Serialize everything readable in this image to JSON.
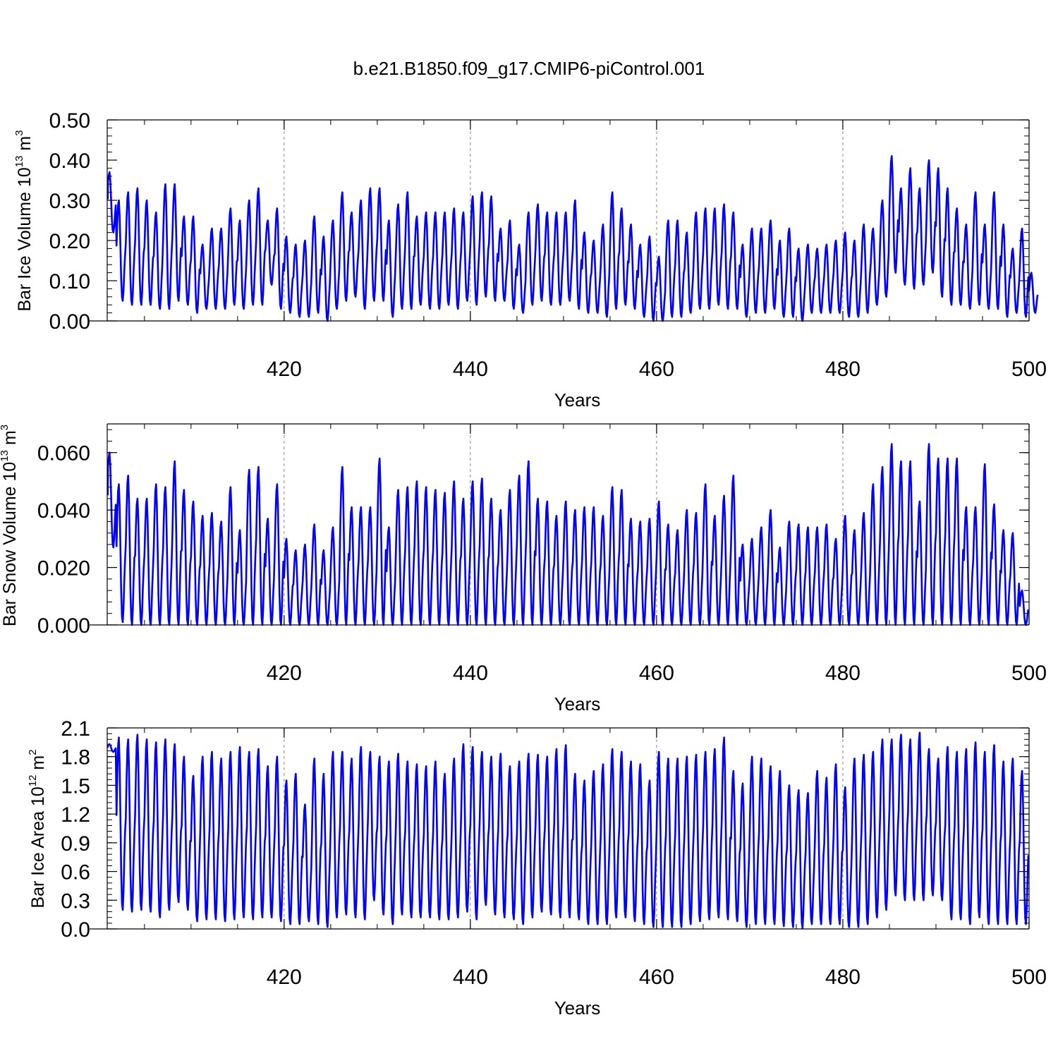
{
  "figure_title": "b.e21.B1850.f09_g17.CMIP6-piControl.001",
  "panels": [
    {
      "ylabel_main": "Bar Ice Volume 10",
      "ylabel_exp": "13",
      "ylabel_unit": " m",
      "ylabel_unit_exp": "3"
    },
    {
      "ylabel_main": "Bar Snow Volume 10",
      "ylabel_exp": "13",
      "ylabel_unit": " m",
      "ylabel_unit_exp": "3"
    },
    {
      "ylabel_main": "Bar Ice Area 10",
      "ylabel_exp": "12",
      "ylabel_unit": " m",
      "ylabel_unit_exp": "2"
    }
  ],
  "chart_data": [
    {
      "type": "line",
      "title": "b.e21.B1850.f09_g17.CMIP6-piControl.001",
      "xlabel": "Years",
      "ylabel": "Bar Ice Volume 10^13 m^3",
      "xlim": [
        401,
        500
      ],
      "ylim": [
        0.0,
        0.5
      ],
      "xticks": [
        420,
        440,
        460,
        480,
        500
      ],
      "xtick_labels": [
        "420",
        "440",
        "460",
        "480",
        "500"
      ],
      "yticks": [
        0.0,
        0.1,
        0.2,
        0.3,
        0.4,
        0.5
      ],
      "ytick_labels": [
        "0.00",
        "0.10",
        "0.20",
        "0.30",
        "0.40",
        "0.50"
      ],
      "grid": "dashed vertical lines at x ticks",
      "line_color": "#0000ff",
      "series": [
        {
          "x_start": 401,
          "annual_max": [
            0.37,
            0.3,
            0.32,
            0.33,
            0.3,
            0.27,
            0.34,
            0.34,
            0.26,
            0.26,
            0.19,
            0.23,
            0.23,
            0.28,
            0.25,
            0.3,
            0.33,
            0.25,
            0.28,
            0.21,
            0.19,
            0.2,
            0.26,
            0.21,
            0.25,
            0.32,
            0.27,
            0.3,
            0.33,
            0.33,
            0.25,
            0.29,
            0.32,
            0.26,
            0.27,
            0.27,
            0.27,
            0.28,
            0.27,
            0.31,
            0.32,
            0.31,
            0.23,
            0.25,
            0.19,
            0.27,
            0.29,
            0.27,
            0.27,
            0.27,
            0.3,
            0.22,
            0.2,
            0.24,
            0.32,
            0.28,
            0.24,
            0.19,
            0.21,
            0.16,
            0.25,
            0.25,
            0.22,
            0.27,
            0.28,
            0.28,
            0.29,
            0.27,
            0.19,
            0.23,
            0.23,
            0.25,
            0.2,
            0.23,
            0.18,
            0.19,
            0.18,
            0.19,
            0.2,
            0.22,
            0.2,
            0.24,
            0.23,
            0.3,
            0.41,
            0.33,
            0.38,
            0.33,
            0.4,
            0.38,
            0.33,
            0.28,
            0.24,
            0.32,
            0.24,
            0.32,
            0.24,
            0.18,
            0.23,
            0.12
          ],
          "annual_min": [
            0.22,
            0.05,
            0.04,
            0.04,
            0.04,
            0.03,
            0.03,
            0.05,
            0.04,
            0.02,
            0.03,
            0.03,
            0.03,
            0.04,
            0.03,
            0.04,
            0.04,
            0.09,
            0.03,
            0.02,
            0.01,
            0.01,
            0.02,
            0.0,
            0.03,
            0.05,
            0.06,
            0.03,
            0.05,
            0.05,
            0.01,
            0.03,
            0.03,
            0.04,
            0.03,
            0.03,
            0.04,
            0.03,
            0.05,
            0.04,
            0.06,
            0.05,
            0.05,
            0.03,
            0.02,
            0.04,
            0.05,
            0.04,
            0.04,
            0.05,
            0.03,
            0.02,
            0.02,
            0.01,
            0.03,
            0.04,
            0.03,
            0.01,
            0.0,
            0.0,
            0.01,
            0.01,
            0.02,
            0.03,
            0.03,
            0.04,
            0.03,
            0.03,
            0.01,
            0.02,
            0.02,
            0.03,
            0.01,
            0.01,
            0.0,
            0.02,
            0.02,
            0.02,
            0.02,
            0.01,
            0.01,
            0.02,
            0.04,
            0.06,
            0.12,
            0.09,
            0.08,
            0.09,
            0.12,
            0.06,
            0.04,
            0.04,
            0.03,
            0.04,
            0.03,
            0.03,
            0.01,
            0.02,
            0.01,
            0.02
          ]
        }
      ]
    },
    {
      "type": "line",
      "xlabel": "Years",
      "ylabel": "Bar Snow Volume 10^13 m^3",
      "xlim": [
        401,
        500
      ],
      "ylim": [
        0.0,
        0.07
      ],
      "xticks": [
        420,
        440,
        460,
        480,
        500
      ],
      "xtick_labels": [
        "420",
        "440",
        "460",
        "480",
        "500"
      ],
      "yticks": [
        0.0,
        0.02,
        0.04,
        0.06
      ],
      "ytick_labels": [
        "0.000",
        "0.020",
        "0.040",
        "0.060"
      ],
      "grid": "dashed vertical lines at x ticks",
      "line_color": "#0000ff",
      "series": [
        {
          "x_start": 401,
          "annual_max": [
            0.06,
            0.049,
            0.052,
            0.044,
            0.044,
            0.049,
            0.048,
            0.057,
            0.047,
            0.043,
            0.038,
            0.039,
            0.036,
            0.048,
            0.033,
            0.054,
            0.055,
            0.037,
            0.049,
            0.03,
            0.026,
            0.028,
            0.035,
            0.026,
            0.034,
            0.055,
            0.041,
            0.041,
            0.041,
            0.058,
            0.034,
            0.047,
            0.048,
            0.05,
            0.048,
            0.047,
            0.046,
            0.05,
            0.044,
            0.05,
            0.051,
            0.044,
            0.04,
            0.047,
            0.052,
            0.057,
            0.044,
            0.043,
            0.038,
            0.043,
            0.04,
            0.041,
            0.041,
            0.038,
            0.048,
            0.047,
            0.037,
            0.036,
            0.037,
            0.043,
            0.035,
            0.033,
            0.04,
            0.039,
            0.049,
            0.038,
            0.045,
            0.052,
            0.028,
            0.03,
            0.034,
            0.04,
            0.027,
            0.036,
            0.035,
            0.034,
            0.034,
            0.035,
            0.03,
            0.038,
            0.033,
            0.039,
            0.049,
            0.055,
            0.063,
            0.057,
            0.057,
            0.043,
            0.063,
            0.058,
            0.058,
            0.058,
            0.041,
            0.041,
            0.056,
            0.042,
            0.033,
            0.032,
            0.012
          ],
          "annual_min": [
            0.027,
            0.001,
            0.0,
            0.0,
            0.0,
            0.0,
            0.0,
            0.0,
            0.0,
            0.0,
            0.0,
            0.0,
            0.0,
            0.0,
            0.0,
            0.0,
            0.0,
            0.0,
            0.0,
            0.0,
            0.0,
            0.0,
            0.0,
            0.0,
            0.0,
            0.0,
            0.0,
            0.0,
            0.0,
            0.0,
            0.0,
            0.0,
            0.0,
            0.0,
            0.0,
            0.0,
            0.0,
            0.0,
            0.0,
            0.0,
            0.0,
            0.0,
            0.0,
            0.0,
            0.0,
            0.0,
            0.0,
            0.0,
            0.0,
            0.0,
            0.0,
            0.0,
            0.0,
            0.0,
            0.0,
            0.0,
            0.0,
            0.0,
            0.0,
            0.0,
            0.0,
            0.0,
            0.0,
            0.0,
            0.0,
            0.0,
            0.0,
            0.0,
            0.0,
            0.0,
            0.0,
            0.0,
            0.0,
            0.0,
            0.0,
            0.0,
            0.0,
            0.0,
            0.0,
            0.0,
            0.0,
            0.0,
            0.0,
            0.0,
            0.0,
            0.0,
            0.0,
            0.0,
            0.0,
            0.0,
            0.0,
            0.0,
            0.0,
            0.0,
            0.0,
            0.0,
            0.0,
            0.0,
            0.0
          ]
        }
      ]
    },
    {
      "type": "line",
      "xlabel": "Years",
      "ylabel": "Bar Ice Area 10^12 m^2",
      "xlim": [
        401,
        500
      ],
      "ylim": [
        0.0,
        2.1
      ],
      "xticks": [
        420,
        440,
        460,
        480,
        500
      ],
      "xtick_labels": [
        "420",
        "440",
        "460",
        "480",
        "500"
      ],
      "yticks": [
        0.0,
        0.3,
        0.6,
        0.9,
        1.2,
        1.5,
        1.8,
        2.1
      ],
      "ytick_labels": [
        "0.0",
        "0.3",
        "0.6",
        "0.9",
        "1.2",
        "1.5",
        "1.8",
        "2.1"
      ],
      "grid": "dashed vertical lines at x ticks",
      "line_color": "#0000ff",
      "series": [
        {
          "x_start": 401,
          "annual_max": [
            1.93,
            2.0,
            1.98,
            2.03,
            1.98,
            1.95,
            1.98,
            1.93,
            1.8,
            1.6,
            1.8,
            1.85,
            1.78,
            1.85,
            1.9,
            1.85,
            1.88,
            1.7,
            1.8,
            1.55,
            1.62,
            1.3,
            1.78,
            1.62,
            1.85,
            1.85,
            1.78,
            1.9,
            1.85,
            1.8,
            1.75,
            1.83,
            1.75,
            1.72,
            1.7,
            1.75,
            1.62,
            1.78,
            1.93,
            1.9,
            1.85,
            1.8,
            1.83,
            1.7,
            1.75,
            1.83,
            1.82,
            1.8,
            1.88,
            1.92,
            1.62,
            1.55,
            1.65,
            1.72,
            1.88,
            1.85,
            1.75,
            1.72,
            1.55,
            1.85,
            1.78,
            1.78,
            1.8,
            1.82,
            1.85,
            1.88,
            2.0,
            1.65,
            1.52,
            1.8,
            1.78,
            1.7,
            1.65,
            1.5,
            1.45,
            1.42,
            1.65,
            1.58,
            1.72,
            1.48,
            1.78,
            1.82,
            1.85,
            1.98,
            1.98,
            2.03,
            1.98,
            2.05,
            1.88,
            1.78,
            1.9,
            1.85,
            1.88,
            1.95,
            1.85,
            1.92,
            1.75,
            1.78,
            1.65
          ],
          "annual_min": [
            1.85,
            0.2,
            0.18,
            0.2,
            0.18,
            0.12,
            0.2,
            0.28,
            0.2,
            0.08,
            0.1,
            0.1,
            0.08,
            0.1,
            0.12,
            0.1,
            0.12,
            0.12,
            0.08,
            0.05,
            0.05,
            0.08,
            0.05,
            0.02,
            0.12,
            0.15,
            0.12,
            0.1,
            0.3,
            0.15,
            0.05,
            0.15,
            0.12,
            0.12,
            0.12,
            0.1,
            0.1,
            0.12,
            0.18,
            0.1,
            0.25,
            0.15,
            0.12,
            0.1,
            0.05,
            0.12,
            0.18,
            0.15,
            0.12,
            0.12,
            0.1,
            0.05,
            0.05,
            0.05,
            0.12,
            0.12,
            0.08,
            0.05,
            0.02,
            0.02,
            0.02,
            0.02,
            0.05,
            0.08,
            0.1,
            0.12,
            0.1,
            0.08,
            0.02,
            0.05,
            0.05,
            0.05,
            0.03,
            0.02,
            0.01,
            0.05,
            0.05,
            0.05,
            0.05,
            0.02,
            0.02,
            0.05,
            0.12,
            0.2,
            0.35,
            0.3,
            0.3,
            0.3,
            0.35,
            0.3,
            0.1,
            0.1,
            0.05,
            0.12,
            0.05,
            0.05,
            0.05,
            0.05,
            0.05
          ]
        }
      ]
    }
  ]
}
